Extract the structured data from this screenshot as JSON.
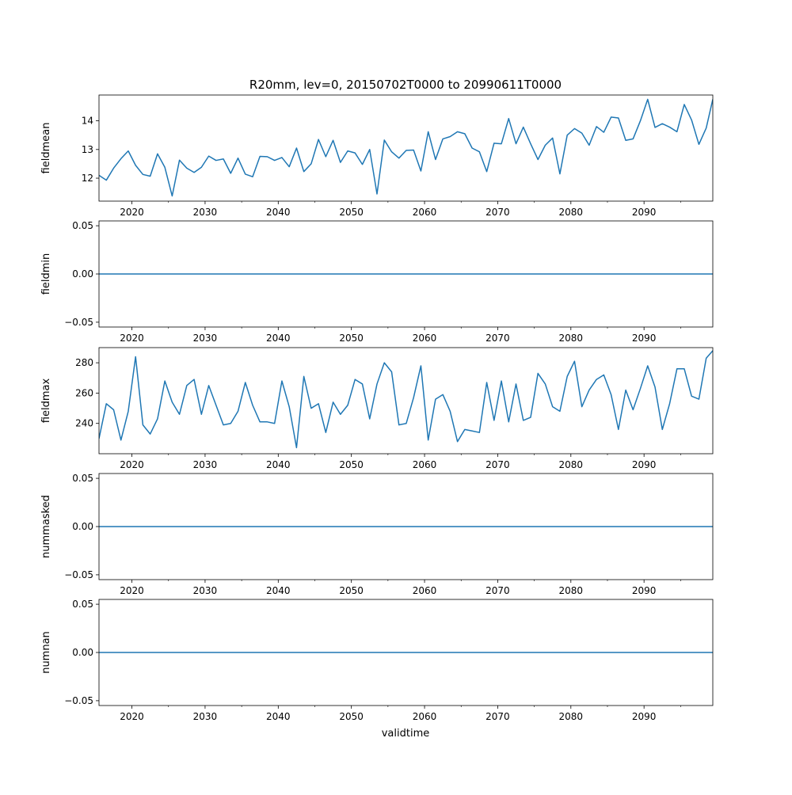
{
  "figure": {
    "title": "R20mm, lev=0, 20150702T0000 to 20990611T0000",
    "xlabel": "validtime",
    "line_color": "#1f77b4"
  },
  "chart_data": [
    {
      "type": "line",
      "ylabel": "fieldmean",
      "xlim": [
        2015.5,
        2099.4
      ],
      "ylim": [
        11.2,
        14.9
      ],
      "x_ticks": [
        2020,
        2030,
        2040,
        2050,
        2060,
        2070,
        2080,
        2090
      ],
      "y_ticks": [
        "12",
        "13",
        "14"
      ],
      "x": [
        2015.5,
        2016.5,
        2017.5,
        2018.5,
        2019.5,
        2020.5,
        2021.5,
        2022.5,
        2023.5,
        2024.5,
        2025.5,
        2026.5,
        2027.5,
        2028.5,
        2029.5,
        2030.5,
        2031.5,
        2032.5,
        2033.5,
        2034.5,
        2035.5,
        2036.5,
        2037.5,
        2038.5,
        2039.5,
        2040.5,
        2041.5,
        2042.5,
        2043.5,
        2044.5,
        2045.5,
        2046.5,
        2047.5,
        2048.5,
        2049.5,
        2050.5,
        2051.5,
        2052.5,
        2053.5,
        2054.5,
        2055.5,
        2056.5,
        2057.5,
        2058.5,
        2059.5,
        2060.5,
        2061.5,
        2062.5,
        2063.5,
        2064.5,
        2065.5,
        2066.5,
        2067.5,
        2068.5,
        2069.5,
        2070.5,
        2071.5,
        2072.5,
        2073.5,
        2074.5,
        2075.5,
        2076.5,
        2077.5,
        2078.5,
        2079.5,
        2080.5,
        2081.5,
        2082.5,
        2083.5,
        2084.5,
        2085.5,
        2086.5,
        2087.5,
        2088.5,
        2089.5,
        2090.5,
        2091.5,
        2092.5,
        2093.5,
        2094.5,
        2095.5,
        2096.5,
        2097.5,
        2098.5,
        2099.4
      ],
      "values": [
        12.1,
        11.93,
        12.35,
        12.68,
        12.95,
        12.45,
        12.13,
        12.07,
        12.85,
        12.38,
        11.38,
        12.63,
        12.35,
        12.2,
        12.38,
        12.77,
        12.62,
        12.67,
        12.17,
        12.7,
        12.14,
        12.05,
        12.76,
        12.75,
        12.62,
        12.72,
        12.4,
        13.05,
        12.23,
        12.5,
        13.35,
        12.75,
        13.32,
        12.55,
        12.95,
        12.88,
        12.48,
        13.0,
        11.45,
        13.33,
        12.92,
        12.7,
        12.97,
        12.98,
        12.25,
        13.62,
        12.65,
        13.37,
        13.45,
        13.62,
        13.55,
        13.05,
        12.92,
        12.23,
        13.22,
        13.2,
        14.08,
        13.2,
        13.78,
        13.2,
        12.65,
        13.15,
        13.4,
        12.15,
        13.5,
        13.73,
        13.57,
        13.15,
        13.8,
        13.6,
        14.13,
        14.1,
        13.32,
        13.37,
        14.0,
        14.75,
        13.77,
        13.9,
        13.78,
        13.62,
        14.57,
        14.03,
        13.18,
        13.75,
        14.75
      ]
    },
    {
      "type": "line",
      "ylabel": "fieldmin",
      "xlim": [
        2015.5,
        2099.4
      ],
      "ylim": [
        -0.055,
        0.055
      ],
      "x_ticks": [
        2020,
        2030,
        2040,
        2050,
        2060,
        2070,
        2080,
        2090
      ],
      "y_ticks": [
        "−0.05",
        "0.00",
        "0.05"
      ],
      "x": [
        2015.5,
        2099.4
      ],
      "values": [
        0,
        0
      ]
    },
    {
      "type": "line",
      "ylabel": "fieldmax",
      "xlim": [
        2015.5,
        2099.4
      ],
      "ylim": [
        220,
        290
      ],
      "x_ticks": [
        2020,
        2030,
        2040,
        2050,
        2060,
        2070,
        2080,
        2090
      ],
      "y_ticks": [
        "240",
        "260",
        "280"
      ],
      "x": [
        2015.5,
        2016.5,
        2017.5,
        2018.5,
        2019.5,
        2020.5,
        2021.5,
        2022.5,
        2023.5,
        2024.5,
        2025.5,
        2026.5,
        2027.5,
        2028.5,
        2029.5,
        2030.5,
        2031.5,
        2032.5,
        2033.5,
        2034.5,
        2035.5,
        2036.5,
        2037.5,
        2038.5,
        2039.5,
        2040.5,
        2041.5,
        2042.5,
        2043.5,
        2044.5,
        2045.5,
        2046.5,
        2047.5,
        2048.5,
        2049.5,
        2050.5,
        2051.5,
        2052.5,
        2053.5,
        2054.5,
        2055.5,
        2056.5,
        2057.5,
        2058.5,
        2059.5,
        2060.5,
        2061.5,
        2062.5,
        2063.5,
        2064.5,
        2065.5,
        2066.5,
        2067.5,
        2068.5,
        2069.5,
        2070.5,
        2071.5,
        2072.5,
        2073.5,
        2074.5,
        2075.5,
        2076.5,
        2077.5,
        2078.5,
        2079.5,
        2080.5,
        2081.5,
        2082.5,
        2083.5,
        2084.5,
        2085.5,
        2086.5,
        2087.5,
        2088.5,
        2089.5,
        2090.5,
        2091.5,
        2092.5,
        2093.5,
        2094.5,
        2095.5,
        2096.5,
        2097.5,
        2098.5,
        2099.4
      ],
      "values": [
        230,
        253,
        249,
        229,
        248,
        284,
        239,
        233,
        243,
        268,
        254,
        246,
        265,
        269,
        246,
        265,
        252,
        239,
        240,
        248,
        267,
        252,
        241,
        241,
        240,
        268,
        251,
        224,
        271,
        250,
        253,
        234,
        254,
        246,
        252,
        269,
        266,
        243,
        266,
        280,
        274,
        239,
        240,
        257,
        278,
        229,
        256,
        259,
        248,
        228,
        236,
        235,
        234,
        267,
        242,
        268,
        241,
        266,
        242,
        244,
        273,
        266,
        251,
        248,
        271,
        281,
        251,
        262,
        269,
        272,
        259,
        236,
        262,
        249,
        263,
        278,
        264,
        236,
        253,
        276,
        276,
        258,
        256,
        283,
        288
      ]
    },
    {
      "type": "line",
      "ylabel": "nummasked",
      "xlim": [
        2015.5,
        2099.4
      ],
      "ylim": [
        -0.055,
        0.055
      ],
      "x_ticks": [
        2020,
        2030,
        2040,
        2050,
        2060,
        2070,
        2080,
        2090
      ],
      "y_ticks": [
        "−0.05",
        "0.00",
        "0.05"
      ],
      "x": [
        2015.5,
        2099.4
      ],
      "values": [
        0,
        0
      ]
    },
    {
      "type": "line",
      "ylabel": "numnan",
      "xlim": [
        2015.5,
        2099.4
      ],
      "ylim": [
        -0.055,
        0.055
      ],
      "x_ticks": [
        2020,
        2030,
        2040,
        2050,
        2060,
        2070,
        2080,
        2090
      ],
      "y_ticks": [
        "−0.05",
        "0.00",
        "0.05"
      ],
      "x": [
        2015.5,
        2099.4
      ],
      "values": [
        0,
        0
      ]
    }
  ]
}
